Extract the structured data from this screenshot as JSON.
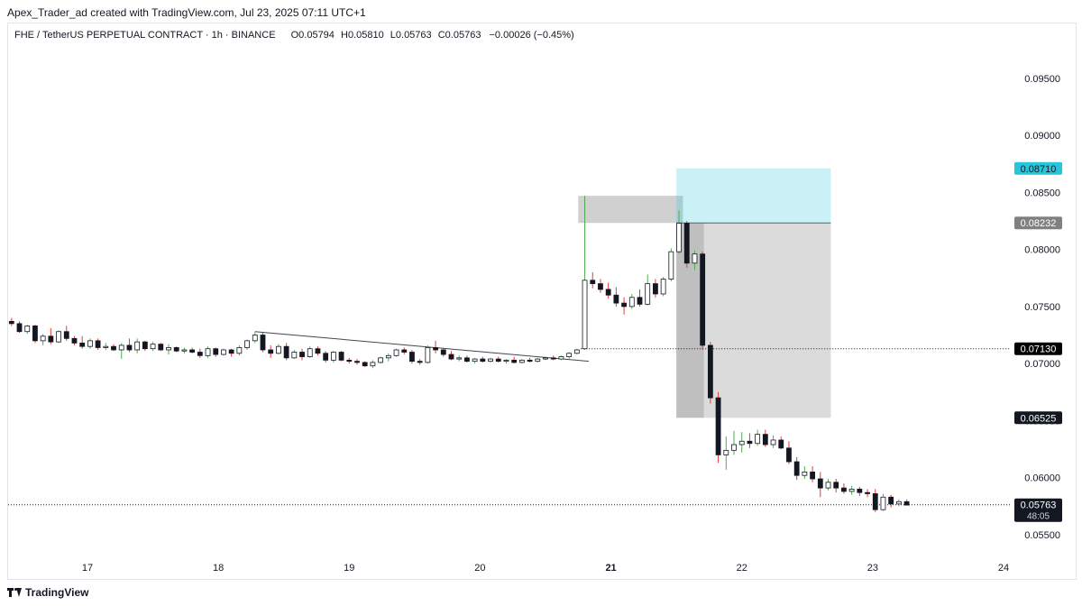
{
  "caption": "Apex_Trader_ad created with TradingView.com, Jul 23, 2025 07:11 UTC+1",
  "legend": {
    "symbol": "FHE / TetherUS PERPETUAL CONTRACT · 1h · BINANCE",
    "o_label": "O",
    "o": "0.05794",
    "h_label": "H",
    "h": "0.05810",
    "l_label": "L",
    "l": "0.05763",
    "c_label": "C",
    "c": "0.05763",
    "change": "−0.00026 (−0.45%)"
  },
  "footer": {
    "brand": "TradingView"
  },
  "chart_data": {
    "type": "candlestick",
    "ylim": [
      0.0535,
      0.0983
    ],
    "xlim_day": [
      16.4,
      24.0
    ],
    "x_ticks": [
      "17",
      "18",
      "19",
      "20",
      "21",
      "22",
      "23",
      "24"
    ],
    "y_ticks": [
      "0.09500",
      "0.09000",
      "0.08500",
      "0.08000",
      "0.07500",
      "0.07000",
      "0.06500",
      "0.06000",
      "0.05500"
    ],
    "price_labels": [
      {
        "text": "0.08710",
        "value": 0.0871,
        "bg": "#26c6da",
        "fg": "#131722"
      },
      {
        "text": "0.08232",
        "value": 0.08232,
        "bg": "#808080",
        "fg": "#ffffff"
      },
      {
        "text": "0.07130",
        "value": 0.0713,
        "bg": "#000000",
        "fg": "#ffffff"
      },
      {
        "text": "0.06525",
        "value": 0.06525,
        "bg": "#131722",
        "fg": "#ffffff"
      },
      {
        "text": "0.05763",
        "value": 0.05763,
        "bg": "#131722",
        "fg": "#ffffff",
        "sub": "48:05"
      }
    ],
    "horizontal_lines": [
      0.0713,
      0.05763
    ],
    "trendline": {
      "from": [
        18.28,
        0.0728
      ],
      "to": [
        20.83,
        0.0702
      ]
    },
    "boxes": [
      {
        "day": [
          20.75,
          21.55
        ],
        "price": [
          0.08232,
          0.0847
        ],
        "color": "#c8c8c8",
        "opacity": 0.85
      },
      {
        "day": [
          21.5,
          22.68
        ],
        "price": [
          0.08232,
          0.0871
        ],
        "color": "#26c6da",
        "opacity": 0.25
      },
      {
        "day": [
          21.5,
          22.68
        ],
        "price": [
          0.06525,
          0.08232
        ],
        "color": "#bdbdbd",
        "opacity": 0.55
      },
      {
        "day": [
          21.5,
          21.71
        ],
        "price": [
          0.06525,
          0.08232
        ],
        "color": "#9e9e9e",
        "opacity": 0.45
      }
    ],
    "colors": {
      "up": "#4caf50",
      "down": "#e53935",
      "body": "#131722",
      "grid": "#eef0f3"
    },
    "candles": [
      {
        "d": 16.42,
        "o": 0.0737,
        "h": 0.074,
        "l": 0.0733,
        "c": 0.0735
      },
      {
        "d": 16.48,
        "o": 0.0735,
        "h": 0.0737,
        "l": 0.0727,
        "c": 0.0728
      },
      {
        "d": 16.54,
        "o": 0.0728,
        "h": 0.0734,
        "l": 0.0726,
        "c": 0.0733
      },
      {
        "d": 16.6,
        "o": 0.0733,
        "h": 0.0734,
        "l": 0.0718,
        "c": 0.072
      },
      {
        "d": 16.66,
        "o": 0.072,
        "h": 0.0726,
        "l": 0.0716,
        "c": 0.0724
      },
      {
        "d": 16.72,
        "o": 0.0724,
        "h": 0.0731,
        "l": 0.0717,
        "c": 0.0719
      },
      {
        "d": 16.78,
        "o": 0.0719,
        "h": 0.0729,
        "l": 0.0718,
        "c": 0.0728
      },
      {
        "d": 16.84,
        "o": 0.0728,
        "h": 0.0733,
        "l": 0.072,
        "c": 0.0722
      },
      {
        "d": 16.9,
        "o": 0.0722,
        "h": 0.0724,
        "l": 0.0716,
        "c": 0.0718
      },
      {
        "d": 16.96,
        "o": 0.0718,
        "h": 0.0724,
        "l": 0.0713,
        "c": 0.0715
      },
      {
        "d": 17.02,
        "o": 0.0715,
        "h": 0.0722,
        "l": 0.0713,
        "c": 0.072
      },
      {
        "d": 17.08,
        "o": 0.072,
        "h": 0.0722,
        "l": 0.0712,
        "c": 0.0714
      },
      {
        "d": 17.14,
        "o": 0.0714,
        "h": 0.0718,
        "l": 0.0712,
        "c": 0.0715
      },
      {
        "d": 17.2,
        "o": 0.0715,
        "h": 0.0717,
        "l": 0.0711,
        "c": 0.0712
      },
      {
        "d": 17.26,
        "o": 0.0712,
        "h": 0.0718,
        "l": 0.0704,
        "c": 0.0716
      },
      {
        "d": 17.32,
        "o": 0.0716,
        "h": 0.0722,
        "l": 0.071,
        "c": 0.0712
      },
      {
        "d": 17.38,
        "o": 0.0712,
        "h": 0.0722,
        "l": 0.0709,
        "c": 0.0719
      },
      {
        "d": 17.44,
        "o": 0.0719,
        "h": 0.072,
        "l": 0.0711,
        "c": 0.0713
      },
      {
        "d": 17.5,
        "o": 0.0713,
        "h": 0.0719,
        "l": 0.0711,
        "c": 0.0717
      },
      {
        "d": 17.56,
        "o": 0.0717,
        "h": 0.0718,
        "l": 0.0711,
        "c": 0.0712
      },
      {
        "d": 17.62,
        "o": 0.0712,
        "h": 0.0717,
        "l": 0.0708,
        "c": 0.0714
      },
      {
        "d": 17.68,
        "o": 0.0714,
        "h": 0.0715,
        "l": 0.071,
        "c": 0.0711
      },
      {
        "d": 17.74,
        "o": 0.0711,
        "h": 0.0714,
        "l": 0.0709,
        "c": 0.0712
      },
      {
        "d": 17.8,
        "o": 0.0712,
        "h": 0.0714,
        "l": 0.0709,
        "c": 0.071
      },
      {
        "d": 17.86,
        "o": 0.071,
        "h": 0.0713,
        "l": 0.0705,
        "c": 0.0707
      },
      {
        "d": 17.92,
        "o": 0.0707,
        "h": 0.0715,
        "l": 0.0705,
        "c": 0.0713
      },
      {
        "d": 17.98,
        "o": 0.0713,
        "h": 0.0714,
        "l": 0.0706,
        "c": 0.0708
      },
      {
        "d": 18.04,
        "o": 0.0708,
        "h": 0.0713,
        "l": 0.0707,
        "c": 0.0712
      },
      {
        "d": 18.1,
        "o": 0.0712,
        "h": 0.0713,
        "l": 0.0706,
        "c": 0.0709
      },
      {
        "d": 18.16,
        "o": 0.0709,
        "h": 0.0716,
        "l": 0.0707,
        "c": 0.0714
      },
      {
        "d": 18.22,
        "o": 0.0714,
        "h": 0.0721,
        "l": 0.0712,
        "c": 0.072
      },
      {
        "d": 18.28,
        "o": 0.072,
        "h": 0.0728,
        "l": 0.0718,
        "c": 0.0725
      },
      {
        "d": 18.34,
        "o": 0.0725,
        "h": 0.0727,
        "l": 0.071,
        "c": 0.0712
      },
      {
        "d": 18.4,
        "o": 0.0712,
        "h": 0.0716,
        "l": 0.0705,
        "c": 0.0709
      },
      {
        "d": 18.46,
        "o": 0.0709,
        "h": 0.0717,
        "l": 0.0708,
        "c": 0.0715
      },
      {
        "d": 18.52,
        "o": 0.0715,
        "h": 0.0718,
        "l": 0.0703,
        "c": 0.0705
      },
      {
        "d": 18.58,
        "o": 0.0705,
        "h": 0.0712,
        "l": 0.0704,
        "c": 0.071
      },
      {
        "d": 18.64,
        "o": 0.071,
        "h": 0.0713,
        "l": 0.0703,
        "c": 0.0706
      },
      {
        "d": 18.7,
        "o": 0.0706,
        "h": 0.0715,
        "l": 0.0705,
        "c": 0.0713
      },
      {
        "d": 18.76,
        "o": 0.0713,
        "h": 0.0715,
        "l": 0.0707,
        "c": 0.0709
      },
      {
        "d": 18.82,
        "o": 0.0709,
        "h": 0.0711,
        "l": 0.0701,
        "c": 0.0703
      },
      {
        "d": 18.88,
        "o": 0.0703,
        "h": 0.0711,
        "l": 0.0701,
        "c": 0.071
      },
      {
        "d": 18.94,
        "o": 0.071,
        "h": 0.0711,
        "l": 0.0702,
        "c": 0.0703
      },
      {
        "d": 19.0,
        "o": 0.0703,
        "h": 0.0705,
        "l": 0.07,
        "c": 0.0702
      },
      {
        "d": 19.06,
        "o": 0.0702,
        "h": 0.0704,
        "l": 0.0699,
        "c": 0.0701
      },
      {
        "d": 19.12,
        "o": 0.0701,
        "h": 0.0702,
        "l": 0.0697,
        "c": 0.0698
      },
      {
        "d": 19.18,
        "o": 0.0698,
        "h": 0.0703,
        "l": 0.0696,
        "c": 0.0701
      },
      {
        "d": 19.24,
        "o": 0.0701,
        "h": 0.0706,
        "l": 0.07,
        "c": 0.0705
      },
      {
        "d": 19.3,
        "o": 0.0705,
        "h": 0.0709,
        "l": 0.0702,
        "c": 0.0707
      },
      {
        "d": 19.36,
        "o": 0.0707,
        "h": 0.0713,
        "l": 0.0706,
        "c": 0.0712
      },
      {
        "d": 19.42,
        "o": 0.0712,
        "h": 0.0714,
        "l": 0.0708,
        "c": 0.071
      },
      {
        "d": 19.48,
        "o": 0.071,
        "h": 0.0712,
        "l": 0.07,
        "c": 0.0702
      },
      {
        "d": 19.54,
        "o": 0.0702,
        "h": 0.0704,
        "l": 0.0699,
        "c": 0.0701
      },
      {
        "d": 19.6,
        "o": 0.0701,
        "h": 0.0716,
        "l": 0.07,
        "c": 0.0714
      },
      {
        "d": 19.66,
        "o": 0.0714,
        "h": 0.072,
        "l": 0.0709,
        "c": 0.0712
      },
      {
        "d": 19.72,
        "o": 0.0712,
        "h": 0.0714,
        "l": 0.0706,
        "c": 0.0708
      },
      {
        "d": 19.78,
        "o": 0.0708,
        "h": 0.0711,
        "l": 0.0703,
        "c": 0.0704
      },
      {
        "d": 19.84,
        "o": 0.0704,
        "h": 0.0707,
        "l": 0.0702,
        "c": 0.0705
      },
      {
        "d": 19.9,
        "o": 0.0705,
        "h": 0.0707,
        "l": 0.0701,
        "c": 0.0702
      },
      {
        "d": 19.96,
        "o": 0.0702,
        "h": 0.0705,
        "l": 0.07,
        "c": 0.0704
      },
      {
        "d": 20.02,
        "o": 0.0704,
        "h": 0.0706,
        "l": 0.0701,
        "c": 0.0702
      },
      {
        "d": 20.08,
        "o": 0.0702,
        "h": 0.0705,
        "l": 0.0701,
        "c": 0.0704
      },
      {
        "d": 20.14,
        "o": 0.0704,
        "h": 0.0706,
        "l": 0.0701,
        "c": 0.0702
      },
      {
        "d": 20.2,
        "o": 0.0702,
        "h": 0.0704,
        "l": 0.07,
        "c": 0.0703
      },
      {
        "d": 20.26,
        "o": 0.0703,
        "h": 0.0706,
        "l": 0.07,
        "c": 0.0701
      },
      {
        "d": 20.32,
        "o": 0.0701,
        "h": 0.0704,
        "l": 0.07,
        "c": 0.0703
      },
      {
        "d": 20.38,
        "o": 0.0703,
        "h": 0.0705,
        "l": 0.0701,
        "c": 0.0702
      },
      {
        "d": 20.44,
        "o": 0.0702,
        "h": 0.0705,
        "l": 0.0701,
        "c": 0.0704
      },
      {
        "d": 20.5,
        "o": 0.0704,
        "h": 0.0706,
        "l": 0.0703,
        "c": 0.0705
      },
      {
        "d": 20.56,
        "o": 0.0705,
        "h": 0.0707,
        "l": 0.0703,
        "c": 0.0704
      },
      {
        "d": 20.62,
        "o": 0.0704,
        "h": 0.0707,
        "l": 0.0703,
        "c": 0.0706
      },
      {
        "d": 20.68,
        "o": 0.0706,
        "h": 0.071,
        "l": 0.0704,
        "c": 0.0709
      },
      {
        "d": 20.74,
        "o": 0.0709,
        "h": 0.0713,
        "l": 0.0708,
        "c": 0.0712
      },
      {
        "d": 20.8,
        "o": 0.0713,
        "h": 0.0847,
        "l": 0.0712,
        "c": 0.0773
      },
      {
        "d": 20.86,
        "o": 0.0773,
        "h": 0.078,
        "l": 0.0766,
        "c": 0.077
      },
      {
        "d": 20.92,
        "o": 0.077,
        "h": 0.0774,
        "l": 0.0762,
        "c": 0.0765
      },
      {
        "d": 20.98,
        "o": 0.0765,
        "h": 0.0771,
        "l": 0.0757,
        "c": 0.076
      },
      {
        "d": 21.04,
        "o": 0.076,
        "h": 0.0767,
        "l": 0.075,
        "c": 0.0753
      },
      {
        "d": 21.1,
        "o": 0.0753,
        "h": 0.0758,
        "l": 0.0743,
        "c": 0.075
      },
      {
        "d": 21.16,
        "o": 0.075,
        "h": 0.0761,
        "l": 0.0748,
        "c": 0.0758
      },
      {
        "d": 21.22,
        "o": 0.0758,
        "h": 0.0765,
        "l": 0.075,
        "c": 0.0752
      },
      {
        "d": 21.28,
        "o": 0.0752,
        "h": 0.0778,
        "l": 0.0751,
        "c": 0.077
      },
      {
        "d": 21.34,
        "o": 0.077,
        "h": 0.0774,
        "l": 0.0758,
        "c": 0.0761
      },
      {
        "d": 21.4,
        "o": 0.0761,
        "h": 0.0776,
        "l": 0.0759,
        "c": 0.0774
      },
      {
        "d": 21.46,
        "o": 0.0774,
        "h": 0.0801,
        "l": 0.0772,
        "c": 0.0798
      },
      {
        "d": 21.52,
        "o": 0.0798,
        "h": 0.0834,
        "l": 0.0796,
        "c": 0.0823
      },
      {
        "d": 21.58,
        "o": 0.0823,
        "h": 0.0825,
        "l": 0.0784,
        "c": 0.0788
      },
      {
        "d": 21.64,
        "o": 0.0788,
        "h": 0.0799,
        "l": 0.0782,
        "c": 0.0796
      },
      {
        "d": 21.7,
        "o": 0.0796,
        "h": 0.0798,
        "l": 0.0712,
        "c": 0.0716
      },
      {
        "d": 21.76,
        "o": 0.0716,
        "h": 0.0719,
        "l": 0.0665,
        "c": 0.067
      },
      {
        "d": 21.82,
        "o": 0.067,
        "h": 0.0675,
        "l": 0.0613,
        "c": 0.062
      },
      {
        "d": 21.88,
        "o": 0.062,
        "h": 0.0636,
        "l": 0.0607,
        "c": 0.0624
      },
      {
        "d": 21.94,
        "o": 0.0624,
        "h": 0.0641,
        "l": 0.062,
        "c": 0.0629
      },
      {
        "d": 22.0,
        "o": 0.0629,
        "h": 0.064,
        "l": 0.0622,
        "c": 0.0632
      },
      {
        "d": 22.06,
        "o": 0.0632,
        "h": 0.0639,
        "l": 0.0626,
        "c": 0.063
      },
      {
        "d": 22.12,
        "o": 0.063,
        "h": 0.0642,
        "l": 0.0628,
        "c": 0.0638
      },
      {
        "d": 22.18,
        "o": 0.0638,
        "h": 0.0642,
        "l": 0.0627,
        "c": 0.0629
      },
      {
        "d": 22.24,
        "o": 0.0629,
        "h": 0.0637,
        "l": 0.0626,
        "c": 0.0633
      },
      {
        "d": 22.3,
        "o": 0.0633,
        "h": 0.0636,
        "l": 0.0625,
        "c": 0.0626
      },
      {
        "d": 22.36,
        "o": 0.0626,
        "h": 0.0632,
        "l": 0.0612,
        "c": 0.0614
      },
      {
        "d": 22.42,
        "o": 0.0614,
        "h": 0.0618,
        "l": 0.0598,
        "c": 0.0602
      },
      {
        "d": 22.48,
        "o": 0.0602,
        "h": 0.061,
        "l": 0.0599,
        "c": 0.0605
      },
      {
        "d": 22.54,
        "o": 0.0605,
        "h": 0.061,
        "l": 0.0596,
        "c": 0.0599
      },
      {
        "d": 22.6,
        "o": 0.0599,
        "h": 0.0605,
        "l": 0.0583,
        "c": 0.0591
      },
      {
        "d": 22.66,
        "o": 0.0591,
        "h": 0.0599,
        "l": 0.0589,
        "c": 0.0596
      },
      {
        "d": 22.72,
        "o": 0.0596,
        "h": 0.0599,
        "l": 0.0587,
        "c": 0.0591
      },
      {
        "d": 22.78,
        "o": 0.0591,
        "h": 0.0595,
        "l": 0.0586,
        "c": 0.0588
      },
      {
        "d": 22.84,
        "o": 0.0588,
        "h": 0.0593,
        "l": 0.0585,
        "c": 0.059
      },
      {
        "d": 22.9,
        "o": 0.059,
        "h": 0.0592,
        "l": 0.0584,
        "c": 0.0587
      },
      {
        "d": 22.96,
        "o": 0.0587,
        "h": 0.059,
        "l": 0.0583,
        "c": 0.0586
      },
      {
        "d": 23.02,
        "o": 0.0586,
        "h": 0.059,
        "l": 0.057,
        "c": 0.0572
      },
      {
        "d": 23.08,
        "o": 0.0572,
        "h": 0.0586,
        "l": 0.0571,
        "c": 0.0583
      },
      {
        "d": 23.14,
        "o": 0.0583,
        "h": 0.0585,
        "l": 0.0574,
        "c": 0.0577
      },
      {
        "d": 23.2,
        "o": 0.0577,
        "h": 0.0581,
        "l": 0.0575,
        "c": 0.0579
      },
      {
        "d": 23.26,
        "o": 0.0579,
        "h": 0.0581,
        "l": 0.0576,
        "c": 0.0576
      }
    ]
  }
}
